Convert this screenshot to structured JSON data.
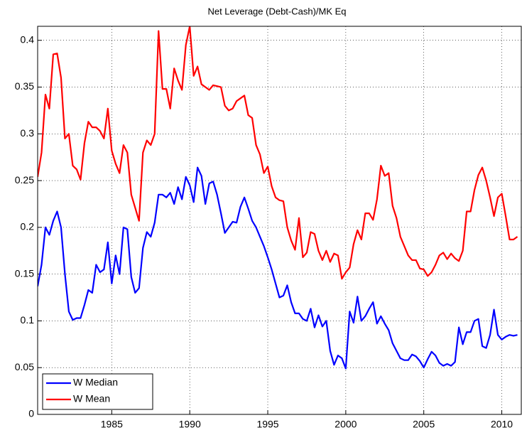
{
  "chart_data": {
    "type": "line",
    "title": "Net Leverage (Debt-Cash)/MK Eq",
    "x": [
      1980.25,
      1980.5,
      1980.75,
      1981,
      1981.25,
      1981.5,
      1981.75,
      1982,
      1982.25,
      1982.5,
      1982.75,
      1983,
      1983.25,
      1983.5,
      1983.75,
      1984,
      1984.25,
      1984.5,
      1984.75,
      1985,
      1985.25,
      1985.5,
      1985.75,
      1986,
      1986.25,
      1986.5,
      1986.75,
      1987,
      1987.25,
      1987.5,
      1987.75,
      1988,
      1988.25,
      1988.5,
      1988.75,
      1989,
      1989.25,
      1989.5,
      1989.75,
      1990,
      1990.25,
      1990.5,
      1990.75,
      1991,
      1991.25,
      1991.5,
      1991.75,
      1992,
      1992.25,
      1992.5,
      1992.75,
      1993,
      1993.25,
      1993.5,
      1993.75,
      1994,
      1994.25,
      1994.5,
      1994.75,
      1995,
      1995.25,
      1995.5,
      1995.75,
      1996,
      1996.25,
      1996.5,
      1996.75,
      1997,
      1997.25,
      1997.5,
      1997.75,
      1998,
      1998.25,
      1998.5,
      1998.75,
      1999,
      1999.25,
      1999.5,
      1999.75,
      2000,
      2000.25,
      2000.5,
      2000.75,
      2001,
      2001.25,
      2001.5,
      2001.75,
      2002,
      2002.25,
      2002.5,
      2002.75,
      2003,
      2003.25,
      2003.5,
      2003.75,
      2004,
      2004.25,
      2004.5,
      2004.75,
      2005,
      2005.25,
      2005.5,
      2005.75,
      2006,
      2006.25,
      2006.5,
      2006.75,
      2007,
      2007.25,
      2007.5,
      2007.75,
      2008,
      2008.25,
      2008.5,
      2008.75,
      2009,
      2009.25,
      2009.5,
      2009.75,
      2010,
      2010.25,
      2010.5,
      2010.75,
      2011
    ],
    "series": [
      {
        "name": "W Median",
        "color": "#0000ff",
        "values": [
          0.137,
          0.16,
          0.2,
          0.192,
          0.207,
          0.217,
          0.2,
          0.15,
          0.11,
          0.101,
          0.103,
          0.103,
          0.117,
          0.133,
          0.13,
          0.16,
          0.152,
          0.155,
          0.184,
          0.14,
          0.17,
          0.15,
          0.2,
          0.198,
          0.147,
          0.13,
          0.135,
          0.178,
          0.195,
          0.19,
          0.205,
          0.235,
          0.235,
          0.232,
          0.237,
          0.225,
          0.243,
          0.23,
          0.254,
          0.245,
          0.227,
          0.264,
          0.255,
          0.225,
          0.247,
          0.249,
          0.235,
          0.215,
          0.194,
          0.2,
          0.206,
          0.205,
          0.222,
          0.232,
          0.22,
          0.207,
          0.2,
          0.19,
          0.18,
          0.168,
          0.155,
          0.14,
          0.125,
          0.127,
          0.138,
          0.12,
          0.108,
          0.108,
          0.102,
          0.1,
          0.113,
          0.093,
          0.106,
          0.094,
          0.1,
          0.068,
          0.053,
          0.063,
          0.06,
          0.049,
          0.11,
          0.098,
          0.126,
          0.1,
          0.105,
          0.113,
          0.12,
          0.097,
          0.105,
          0.097,
          0.09,
          0.076,
          0.068,
          0.06,
          0.058,
          0.058,
          0.064,
          0.062,
          0.057,
          0.05,
          0.059,
          0.067,
          0.063,
          0.055,
          0.052,
          0.054,
          0.052,
          0.056,
          0.093,
          0.075,
          0.088,
          0.088,
          0.1,
          0.102,
          0.073,
          0.071,
          0.085,
          0.112,
          0.085,
          0.08,
          0.083,
          0.085,
          0.084,
          0.085
        ]
      },
      {
        "name": "W Mean",
        "color": "#ff0000",
        "values": [
          0.254,
          0.28,
          0.342,
          0.327,
          0.385,
          0.386,
          0.36,
          0.295,
          0.3,
          0.266,
          0.262,
          0.251,
          0.29,
          0.313,
          0.307,
          0.307,
          0.303,
          0.295,
          0.327,
          0.282,
          0.268,
          0.258,
          0.288,
          0.28,
          0.235,
          0.221,
          0.207,
          0.28,
          0.293,
          0.288,
          0.3,
          0.41,
          0.348,
          0.348,
          0.327,
          0.37,
          0.357,
          0.347,
          0.395,
          0.415,
          0.362,
          0.372,
          0.353,
          0.35,
          0.347,
          0.352,
          0.351,
          0.35,
          0.33,
          0.325,
          0.327,
          0.335,
          0.338,
          0.341,
          0.32,
          0.317,
          0.288,
          0.278,
          0.258,
          0.265,
          0.244,
          0.232,
          0.229,
          0.228,
          0.2,
          0.186,
          0.176,
          0.21,
          0.168,
          0.173,
          0.195,
          0.193,
          0.175,
          0.165,
          0.175,
          0.163,
          0.172,
          0.17,
          0.145,
          0.152,
          0.157,
          0.182,
          0.197,
          0.187,
          0.215,
          0.215,
          0.208,
          0.23,
          0.266,
          0.255,
          0.258,
          0.223,
          0.21,
          0.19,
          0.18,
          0.17,
          0.165,
          0.165,
          0.156,
          0.155,
          0.148,
          0.152,
          0.16,
          0.17,
          0.173,
          0.166,
          0.172,
          0.167,
          0.164,
          0.175,
          0.217,
          0.217,
          0.24,
          0.256,
          0.264,
          0.25,
          0.232,
          0.212,
          0.232,
          0.236,
          0.212,
          0.187,
          0.187,
          0.19
        ]
      }
    ],
    "xlim": [
      1980.25,
      2011.25
    ],
    "xticks": [
      1985,
      1990,
      1995,
      2000,
      2005,
      2010
    ],
    "ylim": [
      0,
      0.415
    ],
    "yticks": [
      0,
      0.05,
      0.1,
      0.15,
      0.2,
      0.25,
      0.3,
      0.35,
      0.4
    ],
    "grid": true,
    "legend": "southwest"
  }
}
